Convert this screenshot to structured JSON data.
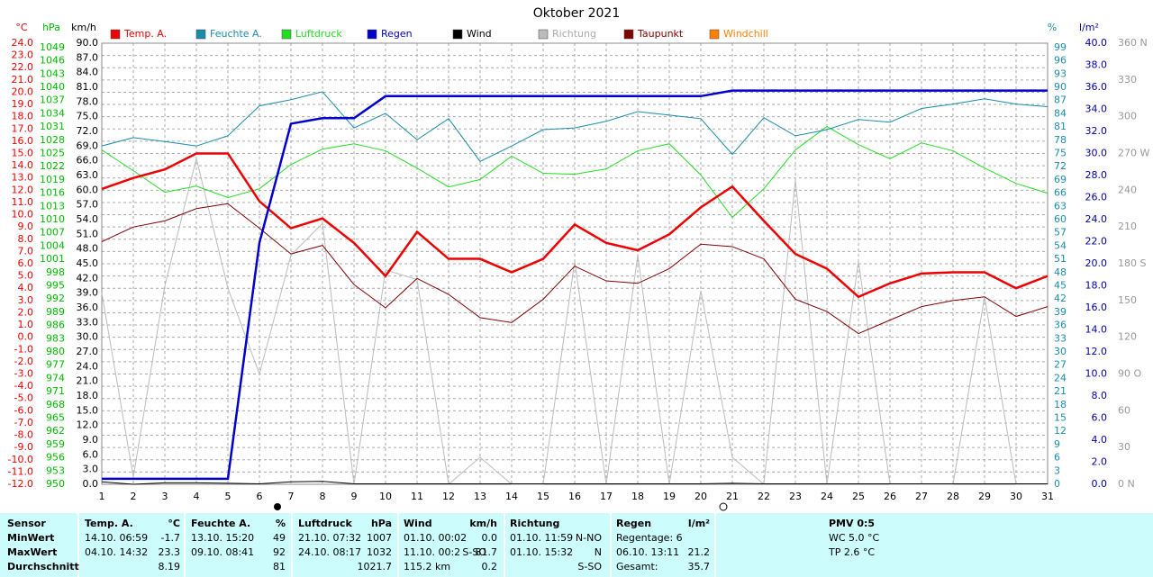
{
  "chart_data": {
    "type": "line",
    "title": "Oktober 2021",
    "x": [
      1,
      2,
      3,
      4,
      5,
      6,
      7,
      8,
      9,
      10,
      11,
      12,
      13,
      14,
      15,
      16,
      17,
      18,
      19,
      20,
      21,
      22,
      23,
      24,
      25,
      26,
      27,
      28,
      29,
      30,
      31
    ],
    "xlim": [
      1,
      31
    ],
    "grid": true,
    "y_axes": [
      {
        "label": "°C",
        "color": "#ee0000",
        "side": "left",
        "ylim": [
          -12,
          24
        ],
        "yticks": [
          {
            "value": 24,
            "label": "24.0"
          },
          {
            "value": 23,
            "label": "23.0"
          },
          {
            "value": 22,
            "label": "22.0"
          },
          {
            "value": 21,
            "label": "21.0"
          },
          {
            "value": 20,
            "label": "20.0"
          },
          {
            "value": 19,
            "label": "19.0"
          },
          {
            "value": 18,
            "label": "18.0"
          },
          {
            "value": 17,
            "label": "17.0"
          },
          {
            "value": 16,
            "label": "16.0"
          },
          {
            "value": 15,
            "label": "15.0"
          },
          {
            "value": 14,
            "label": "14.0"
          },
          {
            "value": 13,
            "label": "13.0"
          },
          {
            "value": 12,
            "label": "12.0"
          },
          {
            "value": 11,
            "label": "11.0"
          },
          {
            "value": 10,
            "label": "10.0"
          },
          {
            "value": 9,
            "label": "9.0"
          },
          {
            "value": 8,
            "label": "8.0"
          },
          {
            "value": 7,
            "label": "7.0"
          },
          {
            "value": 6,
            "label": "6.0"
          },
          {
            "value": 5,
            "label": "5.0"
          },
          {
            "value": 4,
            "label": "4.0"
          },
          {
            "value": 3,
            "label": "3.0"
          },
          {
            "value": 2,
            "label": "2.0"
          },
          {
            "value": 1,
            "label": "1.0"
          },
          {
            "value": 0,
            "label": "0.0"
          },
          {
            "value": -1,
            "label": "-1.0"
          },
          {
            "value": -2,
            "label": "-2.0"
          },
          {
            "value": -3,
            "label": "-3.0"
          },
          {
            "value": -4,
            "label": "-4.0"
          },
          {
            "value": -5,
            "label": "-5.0"
          },
          {
            "value": -6,
            "label": "-6.0"
          },
          {
            "value": -7,
            "label": "-7.0"
          },
          {
            "value": -8,
            "label": "-8.0"
          },
          {
            "value": -9,
            "label": "-9.0"
          },
          {
            "value": -10,
            "label": "-10.0"
          },
          {
            "value": -11,
            "label": "-11.0"
          },
          {
            "value": -12,
            "label": "-12.0"
          }
        ]
      },
      {
        "label": "hPa",
        "color": "#00bb00",
        "side": "left",
        "ylim": [
          950,
          1050
        ],
        "yticks": [
          1049,
          1046,
          1043,
          1040,
          1037,
          1034,
          1031,
          1028,
          1025,
          1022,
          1019,
          1016,
          1013,
          1010,
          1007,
          1004,
          1001,
          998,
          995,
          992,
          989,
          986,
          983,
          980,
          977,
          974,
          971,
          968,
          965,
          962,
          959,
          956,
          953,
          950
        ]
      },
      {
        "label": "km/h",
        "color": "#000000",
        "side": "left",
        "ylim": [
          0,
          90
        ],
        "yticks": [
          {
            "value": 90,
            "label": "90.0"
          },
          {
            "value": 87,
            "label": "87.0"
          },
          {
            "value": 84,
            "label": "84.0"
          },
          {
            "value": 81,
            "label": "81.0"
          },
          {
            "value": 78,
            "label": "78.0"
          },
          {
            "value": 75,
            "label": "75.0"
          },
          {
            "value": 72,
            "label": "72.0"
          },
          {
            "value": 69,
            "label": "69.0"
          },
          {
            "value": 66,
            "label": "66.0"
          },
          {
            "value": 63,
            "label": "63.0"
          },
          {
            "value": 60,
            "label": "60.0"
          },
          {
            "value": 57,
            "label": "57.0"
          },
          {
            "value": 54,
            "label": "54.0"
          },
          {
            "value": 51,
            "label": "51.0"
          },
          {
            "value": 48,
            "label": "48.0"
          },
          {
            "value": 45,
            "label": "45.0"
          },
          {
            "value": 42,
            "label": "42.0"
          },
          {
            "value": 39,
            "label": "39.0"
          },
          {
            "value": 36,
            "label": "36.0"
          },
          {
            "value": 33,
            "label": "33.0"
          },
          {
            "value": 30,
            "label": "30.0"
          },
          {
            "value": 27,
            "label": "27.0"
          },
          {
            "value": 24,
            "label": "24.0"
          },
          {
            "value": 21,
            "label": "21.0"
          },
          {
            "value": 18,
            "label": "18.0"
          },
          {
            "value": 15,
            "label": "15.0"
          },
          {
            "value": 12,
            "label": "12.0"
          },
          {
            "value": 9,
            "label": "9.0"
          },
          {
            "value": 6,
            "label": "6.0"
          },
          {
            "value": 3,
            "label": "3.0"
          },
          {
            "value": 0,
            "label": "0.0"
          }
        ]
      },
      {
        "label": "%",
        "color": "#1a8caa",
        "side": "right",
        "ylim": [
          0,
          100
        ],
        "yticks": [
          99,
          96,
          93,
          90,
          87,
          84,
          81,
          78,
          75,
          72,
          69,
          66,
          63,
          60,
          57,
          54,
          51,
          48,
          45,
          42,
          39,
          36,
          33,
          30,
          27,
          24,
          21,
          18,
          15,
          12,
          9,
          6,
          3,
          0
        ]
      },
      {
        "label": "l/m²",
        "color": "#0000aa",
        "side": "right",
        "ylim": [
          0,
          40
        ],
        "yticks": [
          {
            "value": 40,
            "label": "40.0"
          },
          {
            "value": 38,
            "label": "38.0"
          },
          {
            "value": 36,
            "label": "36.0"
          },
          {
            "value": 34,
            "label": "34.0"
          },
          {
            "value": 32,
            "label": "32.0"
          },
          {
            "value": 30,
            "label": "30.0"
          },
          {
            "value": 28,
            "label": "28.0"
          },
          {
            "value": 26,
            "label": "26.0"
          },
          {
            "value": 24,
            "label": "24.0"
          },
          {
            "value": 22,
            "label": "22.0"
          },
          {
            "value": 20,
            "label": "20.0"
          },
          {
            "value": 18,
            "label": "18.0"
          },
          {
            "value": 16,
            "label": "16.0"
          },
          {
            "value": 14,
            "label": "14.0"
          },
          {
            "value": 12,
            "label": "12.0"
          },
          {
            "value": 10,
            "label": "10.0"
          },
          {
            "value": 8,
            "label": "8.0"
          },
          {
            "value": 6,
            "label": "6.0"
          },
          {
            "value": 4,
            "label": "4.0"
          },
          {
            "value": 2,
            "label": "2.0"
          },
          {
            "value": 0,
            "label": "0.0"
          }
        ]
      },
      {
        "color": "#999999",
        "side": "right",
        "ylim": [
          0,
          360
        ],
        "yticks": [
          {
            "value": 360,
            "label": "360 N"
          },
          330,
          300,
          {
            "value": 270,
            "label": "270 W"
          },
          240,
          210,
          {
            "value": 180,
            "label": "180 S"
          },
          150,
          120,
          {
            "value": 90,
            "label": "90 O"
          },
          60,
          30,
          {
            "value": 0,
            "label": "0 N"
          }
        ]
      }
    ],
    "series": [
      {
        "name": "Temp. A.",
        "color": "#ee0000",
        "axis": 0,
        "line_width": 2.5,
        "values": [
          12.1,
          13.0,
          13.7,
          15.0,
          15.0,
          11.1,
          8.9,
          9.7,
          7.7,
          5.0,
          8.6,
          6.4,
          6.4,
          5.3,
          6.4,
          9.2,
          7.7,
          7.1,
          8.4,
          10.6,
          12.3,
          9.5,
          6.8,
          5.6,
          3.3,
          4.4,
          5.2,
          5.3,
          5.3,
          4.0,
          5.0
        ]
      },
      {
        "name": "Feuchte A.",
        "color": "#1a8caa",
        "axis": 3,
        "line_width": 1,
        "values": [
          76.7,
          78.6,
          77.7,
          76.7,
          79.0,
          85.8,
          87.2,
          89.0,
          80.8,
          84.1,
          78.1,
          82.9,
          73.2,
          76.7,
          80.4,
          80.8,
          82.3,
          84.5,
          83.7,
          82.9,
          74.8,
          83.1,
          79.0,
          80.4,
          82.7,
          82.1,
          85.2,
          86.2,
          87.4,
          86.2,
          85.6
        ]
      },
      {
        "name": "Luftdruck",
        "color": "#22dd22",
        "axis": 1,
        "line_width": 1,
        "values": [
          1025.8,
          1021.1,
          1016.2,
          1017.6,
          1015.0,
          1017.0,
          1022.5,
          1026.0,
          1027.2,
          1025.6,
          1021.7,
          1017.4,
          1019.1,
          1024.4,
          1020.5,
          1020.3,
          1021.5,
          1025.6,
          1027.2,
          1020.1,
          1010.5,
          1017.0,
          1025.8,
          1031.1,
          1027.0,
          1023.8,
          1027.4,
          1025.6,
          1021.7,
          1018.2,
          1016.0
        ]
      },
      {
        "name": "Regen",
        "color": "#0000cc",
        "axis": 4,
        "line_width": 2.5,
        "values": [
          0.5,
          0.5,
          0.5,
          0.5,
          0.5,
          21.9,
          32.7,
          33.2,
          33.2,
          35.2,
          35.2,
          35.2,
          35.2,
          35.2,
          35.2,
          35.2,
          35.2,
          35.2,
          35.2,
          35.2,
          35.7,
          35.7,
          35.7,
          35.7,
          35.7,
          35.7,
          35.7,
          35.7,
          35.7,
          35.7,
          35.7
        ]
      },
      {
        "name": "Wind",
        "color": "#000000",
        "axis": 2,
        "line_width": 1,
        "values": [
          0.5,
          0.0,
          0.3,
          0.3,
          0.2,
          0.1,
          0.5,
          0.6,
          0.1,
          0.1,
          0.1,
          0.1,
          0.1,
          0.1,
          0.1,
          0.1,
          0.1,
          0.1,
          0.1,
          0.1,
          0.2,
          0.1,
          0.1,
          0.1,
          0.1,
          0.1,
          0.1,
          0.1,
          0.1,
          0.1,
          0.1
        ]
      },
      {
        "name": "Richtung",
        "color": "#bbbbbb",
        "axis": 5,
        "line_width": 1,
        "values": [
          156,
          6,
          162,
          266,
          160,
          90,
          187,
          213,
          0,
          175,
          167,
          0,
          22,
          0,
          0,
          182,
          0,
          187,
          0,
          158,
          22,
          0,
          248,
          0,
          182,
          0,
          0,
          0,
          153,
          0,
          0
        ]
      },
      {
        "name": "Taupunkt",
        "color": "#800000",
        "axis": 0,
        "line_width": 1,
        "values": [
          7.8,
          9.0,
          9.5,
          10.5,
          10.9,
          8.9,
          6.8,
          7.5,
          4.3,
          2.4,
          4.8,
          3.5,
          1.6,
          1.2,
          3.1,
          5.8,
          4.6,
          4.4,
          5.6,
          7.6,
          7.4,
          6.4,
          3.1,
          2.1,
          0.3,
          1.4,
          2.5,
          3.0,
          3.3,
          1.7,
          2.5
        ]
      },
      {
        "name": "Windchill",
        "color": "#ff8000",
        "axis": 0,
        "line_width": 1,
        "values": [
          null,
          null,
          null,
          null,
          null,
          null,
          null,
          null,
          null,
          null,
          null,
          null,
          null,
          null,
          null,
          null,
          null,
          null,
          null,
          null,
          null,
          null,
          null,
          null,
          null,
          null,
          null,
          null,
          null,
          null,
          null
        ]
      }
    ]
  },
  "stats": {
    "sensor_header": "Sensor",
    "row_labels": [
      "MinWert",
      "MaxWert",
      "Durchschnitt"
    ],
    "groups": [
      {
        "name": "Temp. A.",
        "unit": "°C",
        "rows": [
          {
            "when": "14.10. 06:59",
            "value": "-1.7"
          },
          {
            "when": "04.10. 14:32",
            "value": "23.3"
          },
          {
            "value": "8.19"
          }
        ]
      },
      {
        "name": "Feuchte A.",
        "unit": "%",
        "rows": [
          {
            "when": "13.10. 15:20",
            "value": "49"
          },
          {
            "when": "09.10. 08:41",
            "value": "92"
          },
          {
            "value": "81"
          }
        ]
      },
      {
        "name": "Luftdruck",
        "unit": "hPa",
        "rows": [
          {
            "when": "21.10. 07:32",
            "value": "1007"
          },
          {
            "when": "24.10. 08:17",
            "value": "1032"
          },
          {
            "value": "1021.7"
          }
        ]
      },
      {
        "name": "Wind",
        "unit": "km/h",
        "rows": [
          {
            "when": "01.10. 00:02",
            "value": "0.0"
          },
          {
            "when": "11.10. 00:2",
            "dir": "S-SO",
            "value": "81.7"
          },
          {
            "when": "115.2 km",
            "value": "0.2"
          }
        ]
      },
      {
        "name": "Richtung",
        "rows": [
          {
            "when": "01.10. 11:59",
            "value": "N-NO"
          },
          {
            "when": "01.10. 15:32",
            "value": "N"
          },
          {
            "value": "S-SO"
          }
        ]
      },
      {
        "name": "Regen",
        "unit": "l/m²",
        "rows": [
          {
            "when": "Regentage: 6"
          },
          {
            "when": "06.10. 13:11",
            "value": "21.2"
          },
          {
            "when": "Gesamt:",
            "value": "35.7"
          }
        ]
      },
      {
        "name": "PMV 0:5",
        "rows": [
          {
            "when": "WC 5.0 °C"
          },
          {
            "when": "TP 2.6 °C"
          }
        ]
      }
    ]
  }
}
